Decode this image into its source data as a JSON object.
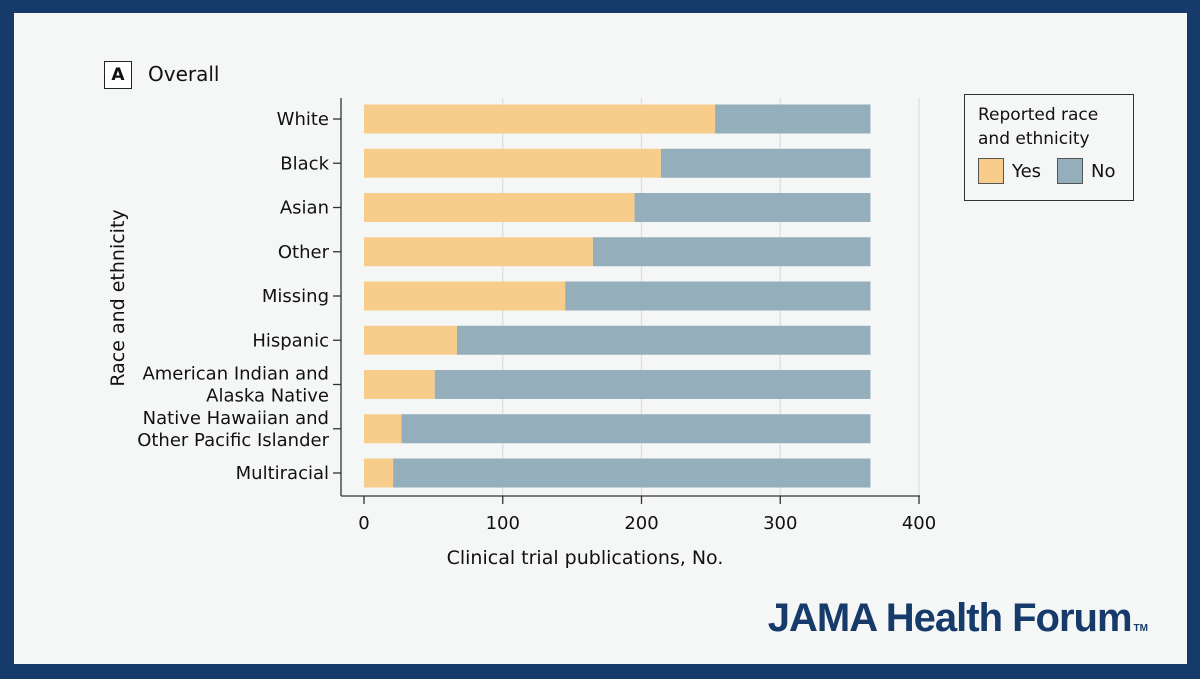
{
  "panel": {
    "letter": "A",
    "title": "Overall"
  },
  "chart_data": {
    "type": "bar",
    "orientation": "horizontal",
    "stacked": true,
    "categories": [
      [
        "White"
      ],
      [
        "Black"
      ],
      [
        "Asian"
      ],
      [
        "Other"
      ],
      [
        "Missing"
      ],
      [
        "Hispanic"
      ],
      [
        "American Indian and",
        "Alaska Native"
      ],
      [
        "Native Hawaiian and",
        "Other Pacific Islander"
      ],
      [
        "Multiracial"
      ]
    ],
    "series": [
      {
        "name": "Yes",
        "color": "#f8cd8c",
        "values": [
          253,
          214,
          195,
          165,
          145,
          67,
          51,
          27,
          21
        ]
      },
      {
        "name": "No",
        "color": "#94afbb",
        "values": [
          112,
          151,
          170,
          200,
          220,
          298,
          314,
          338,
          344
        ]
      }
    ],
    "xlabel": "Clinical trial publications, No.",
    "ylabel": "Race and ethnicity",
    "xlim": [
      0,
      400
    ],
    "xticks": [
      "0",
      "100",
      "200",
      "300",
      "400"
    ],
    "grid": true,
    "legend_title": "Reported race and ethnicity",
    "legend_position": "right"
  },
  "brand": {
    "name": "JAMA Health Forum",
    "tm": "TM"
  }
}
